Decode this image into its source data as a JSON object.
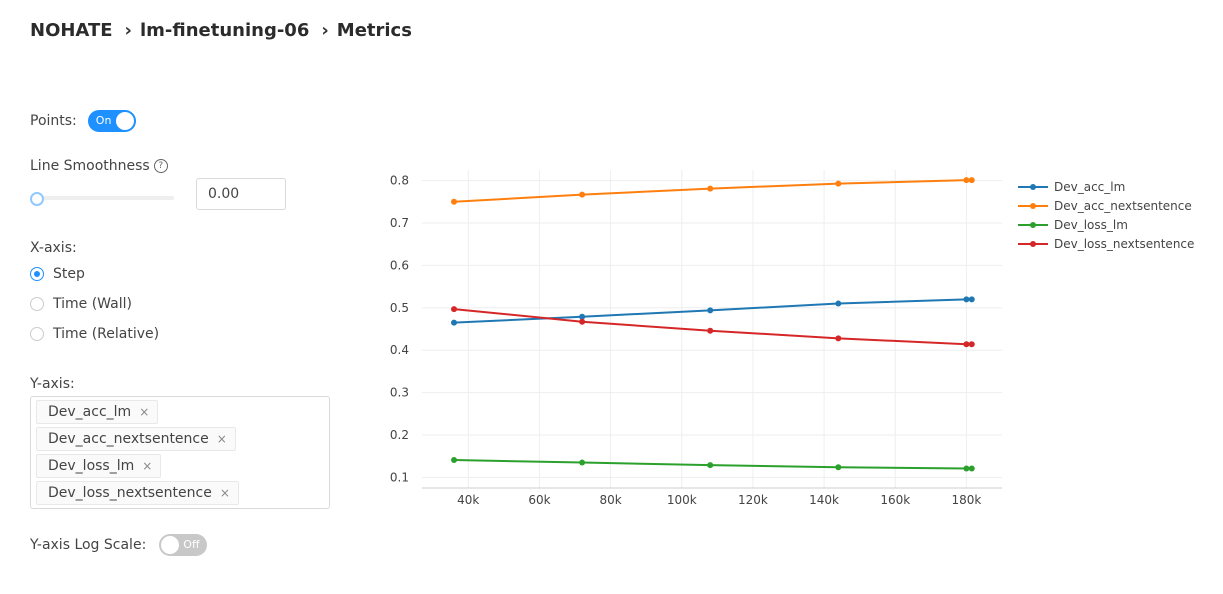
{
  "breadcrumb": {
    "project": "NOHATE",
    "experiment": "lm-finetuning-06",
    "page": "Metrics"
  },
  "controls": {
    "points_label": "Points:",
    "points_toggle": "On",
    "smoothness_label": "Line Smoothness",
    "smoothness_value": "0.00",
    "smoothness_slider": 0,
    "xaxis_label": "X-axis:",
    "xaxis_options": [
      "Step",
      "Time (Wall)",
      "Time (Relative)"
    ],
    "xaxis_selected": "Step",
    "yaxis_label": "Y-axis:",
    "yaxis_tags": [
      "Dev_acc_lm",
      "Dev_acc_nextsentence",
      "Dev_loss_lm",
      "Dev_loss_nextsentence"
    ],
    "log_scale_label": "Y-axis Log Scale:",
    "log_scale_toggle": "Off"
  },
  "icons": {
    "help": "question-circle-icon",
    "breadcrumb_separator": "chevron-right-icon",
    "tag_remove": "close-icon"
  },
  "chart_data": {
    "type": "line",
    "xlabel": "",
    "ylabel": "",
    "xlim": [
      27000,
      190000
    ],
    "ylim": [
      0.075,
      0.825
    ],
    "x_ticks": [
      40000,
      60000,
      80000,
      100000,
      120000,
      140000,
      160000,
      180000
    ],
    "x_tick_labels": [
      "40k",
      "60k",
      "80k",
      "100k",
      "120k",
      "140k",
      "160k",
      "180k"
    ],
    "y_ticks": [
      0.1,
      0.2,
      0.3,
      0.4,
      0.5,
      0.6,
      0.7,
      0.8
    ],
    "y_tick_labels": [
      "0.1",
      "0.2",
      "0.3",
      "0.4",
      "0.5",
      "0.6",
      "0.7",
      "0.8"
    ],
    "grid": true,
    "legend_position": "right",
    "x": [
      36000,
      72000,
      108000,
      144000,
      180000,
      181500
    ],
    "series": [
      {
        "name": "Dev_acc_lm",
        "color": "#1f77b4",
        "values": [
          0.465,
          0.479,
          0.494,
          0.51,
          0.52,
          0.52
        ]
      },
      {
        "name": "Dev_acc_nextsentence",
        "color": "#ff7f0e",
        "values": [
          0.75,
          0.767,
          0.781,
          0.793,
          0.801,
          0.801
        ]
      },
      {
        "name": "Dev_loss_lm",
        "color": "#2ca02c",
        "values": [
          0.141,
          0.135,
          0.129,
          0.124,
          0.121,
          0.121
        ]
      },
      {
        "name": "Dev_loss_nextsentence",
        "color": "#d62728",
        "values": [
          0.497,
          0.467,
          0.446,
          0.428,
          0.414,
          0.414
        ]
      }
    ]
  }
}
